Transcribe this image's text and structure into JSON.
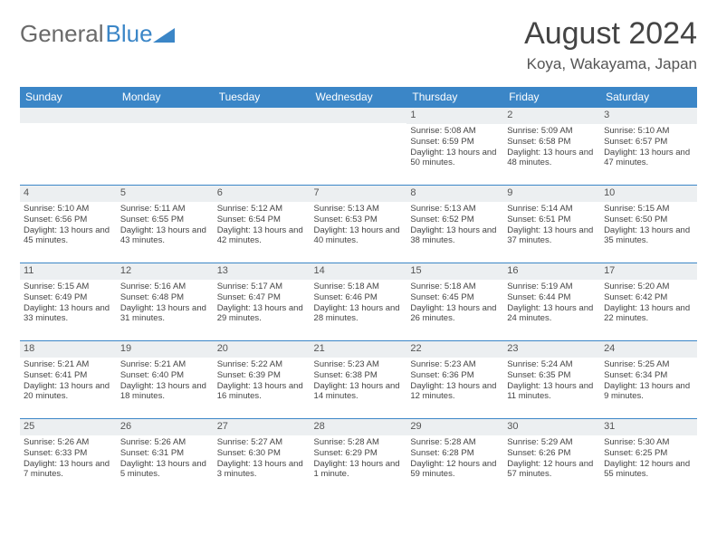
{
  "logo": {
    "text1": "General",
    "text2": "Blue"
  },
  "title": "August 2024",
  "location": "Koya, Wakayama, Japan",
  "colors": {
    "header_bg": "#3b86c7",
    "header_text": "#ffffff",
    "daynum_bg": "#eceff1",
    "rule": "#3b86c7",
    "body_text": "#444444",
    "logo_gray": "#6a6a6a",
    "background": "#ffffff"
  },
  "fonts": {
    "title_size": 34,
    "location_size": 17,
    "weekday_size": 12,
    "cell_size": 9.5
  },
  "weekdays": [
    "Sunday",
    "Monday",
    "Tuesday",
    "Wednesday",
    "Thursday",
    "Friday",
    "Saturday"
  ],
  "weeks": [
    [
      null,
      null,
      null,
      null,
      {
        "n": "1",
        "sr": "5:08 AM",
        "ss": "6:59 PM",
        "dl": "13 hours and 50 minutes."
      },
      {
        "n": "2",
        "sr": "5:09 AM",
        "ss": "6:58 PM",
        "dl": "13 hours and 48 minutes."
      },
      {
        "n": "3",
        "sr": "5:10 AM",
        "ss": "6:57 PM",
        "dl": "13 hours and 47 minutes."
      }
    ],
    [
      {
        "n": "4",
        "sr": "5:10 AM",
        "ss": "6:56 PM",
        "dl": "13 hours and 45 minutes."
      },
      {
        "n": "5",
        "sr": "5:11 AM",
        "ss": "6:55 PM",
        "dl": "13 hours and 43 minutes."
      },
      {
        "n": "6",
        "sr": "5:12 AM",
        "ss": "6:54 PM",
        "dl": "13 hours and 42 minutes."
      },
      {
        "n": "7",
        "sr": "5:13 AM",
        "ss": "6:53 PM",
        "dl": "13 hours and 40 minutes."
      },
      {
        "n": "8",
        "sr": "5:13 AM",
        "ss": "6:52 PM",
        "dl": "13 hours and 38 minutes."
      },
      {
        "n": "9",
        "sr": "5:14 AM",
        "ss": "6:51 PM",
        "dl": "13 hours and 37 minutes."
      },
      {
        "n": "10",
        "sr": "5:15 AM",
        "ss": "6:50 PM",
        "dl": "13 hours and 35 minutes."
      }
    ],
    [
      {
        "n": "11",
        "sr": "5:15 AM",
        "ss": "6:49 PM",
        "dl": "13 hours and 33 minutes."
      },
      {
        "n": "12",
        "sr": "5:16 AM",
        "ss": "6:48 PM",
        "dl": "13 hours and 31 minutes."
      },
      {
        "n": "13",
        "sr": "5:17 AM",
        "ss": "6:47 PM",
        "dl": "13 hours and 29 minutes."
      },
      {
        "n": "14",
        "sr": "5:18 AM",
        "ss": "6:46 PM",
        "dl": "13 hours and 28 minutes."
      },
      {
        "n": "15",
        "sr": "5:18 AM",
        "ss": "6:45 PM",
        "dl": "13 hours and 26 minutes."
      },
      {
        "n": "16",
        "sr": "5:19 AM",
        "ss": "6:44 PM",
        "dl": "13 hours and 24 minutes."
      },
      {
        "n": "17",
        "sr": "5:20 AM",
        "ss": "6:42 PM",
        "dl": "13 hours and 22 minutes."
      }
    ],
    [
      {
        "n": "18",
        "sr": "5:21 AM",
        "ss": "6:41 PM",
        "dl": "13 hours and 20 minutes."
      },
      {
        "n": "19",
        "sr": "5:21 AM",
        "ss": "6:40 PM",
        "dl": "13 hours and 18 minutes."
      },
      {
        "n": "20",
        "sr": "5:22 AM",
        "ss": "6:39 PM",
        "dl": "13 hours and 16 minutes."
      },
      {
        "n": "21",
        "sr": "5:23 AM",
        "ss": "6:38 PM",
        "dl": "13 hours and 14 minutes."
      },
      {
        "n": "22",
        "sr": "5:23 AM",
        "ss": "6:36 PM",
        "dl": "13 hours and 12 minutes."
      },
      {
        "n": "23",
        "sr": "5:24 AM",
        "ss": "6:35 PM",
        "dl": "13 hours and 11 minutes."
      },
      {
        "n": "24",
        "sr": "5:25 AM",
        "ss": "6:34 PM",
        "dl": "13 hours and 9 minutes."
      }
    ],
    [
      {
        "n": "25",
        "sr": "5:26 AM",
        "ss": "6:33 PM",
        "dl": "13 hours and 7 minutes."
      },
      {
        "n": "26",
        "sr": "5:26 AM",
        "ss": "6:31 PM",
        "dl": "13 hours and 5 minutes."
      },
      {
        "n": "27",
        "sr": "5:27 AM",
        "ss": "6:30 PM",
        "dl": "13 hours and 3 minutes."
      },
      {
        "n": "28",
        "sr": "5:28 AM",
        "ss": "6:29 PM",
        "dl": "13 hours and 1 minute."
      },
      {
        "n": "29",
        "sr": "5:28 AM",
        "ss": "6:28 PM",
        "dl": "12 hours and 59 minutes."
      },
      {
        "n": "30",
        "sr": "5:29 AM",
        "ss": "6:26 PM",
        "dl": "12 hours and 57 minutes."
      },
      {
        "n": "31",
        "sr": "5:30 AM",
        "ss": "6:25 PM",
        "dl": "12 hours and 55 minutes."
      }
    ]
  ],
  "labels": {
    "sunrise": "Sunrise:",
    "sunset": "Sunset:",
    "daylight": "Daylight:"
  }
}
